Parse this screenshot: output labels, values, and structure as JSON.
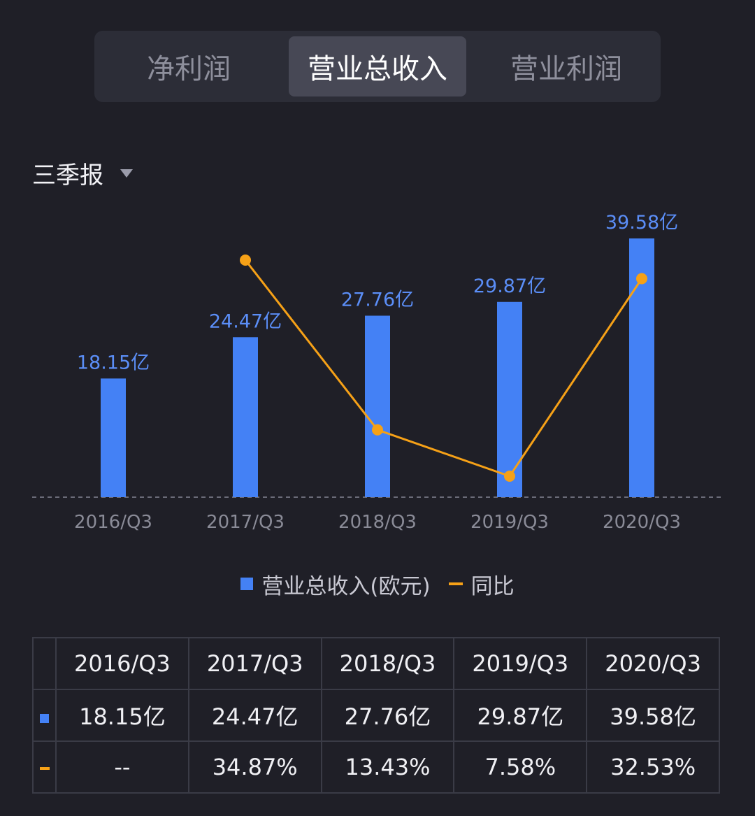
{
  "tabs": [
    {
      "label": "净利润",
      "active": false
    },
    {
      "label": "营业总收入",
      "active": true
    },
    {
      "label": "营业利润",
      "active": false
    }
  ],
  "period": {
    "label": "三季报",
    "icon": "caret-down-icon"
  },
  "chart_data": {
    "type": "bar",
    "categories": [
      "2016/Q3",
      "2017/Q3",
      "2018/Q3",
      "2019/Q3",
      "2020/Q3"
    ],
    "series": [
      {
        "name": "营业总收入(欧元)",
        "type": "bar",
        "color": "#4481f5",
        "values": [
          18.15,
          24.47,
          27.76,
          29.87,
          39.58
        ],
        "labels": [
          "18.15亿",
          "24.47亿",
          "27.76亿",
          "29.87亿",
          "39.58亿"
        ]
      },
      {
        "name": "同比",
        "type": "line",
        "color": "#f6a117",
        "values": [
          null,
          34.87,
          13.43,
          7.58,
          32.53
        ]
      }
    ],
    "ylim": [
      0,
      40
    ],
    "grid": false,
    "legend": "bottom"
  },
  "legend": {
    "bar_label": "营业总收入(欧元)",
    "line_label": "同比"
  },
  "table": {
    "headers": [
      "2016/Q3",
      "2017/Q3",
      "2018/Q3",
      "2019/Q3",
      "2020/Q3"
    ],
    "revenue_row": [
      "18.15亿",
      "24.47亿",
      "27.76亿",
      "29.87亿",
      "39.58亿"
    ],
    "yoy_row": [
      "--",
      "34.87%",
      "13.43%",
      "7.58%",
      "32.53%"
    ]
  },
  "colors": {
    "bar": "#4481f5",
    "line": "#f6a117",
    "positive": "#3ec26f",
    "background": "#1f1f27"
  }
}
